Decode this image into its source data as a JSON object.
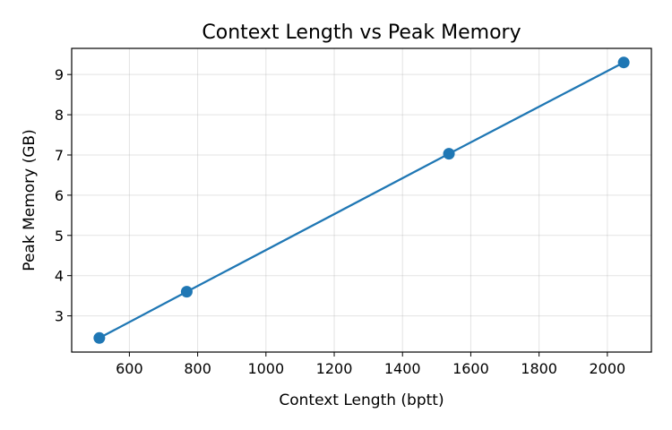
{
  "chart_data": {
    "type": "line",
    "title": "Context Length vs Peak Memory",
    "xlabel": "Context Length (bptt)",
    "ylabel": "Peak Memory (GB)",
    "x": [
      512,
      768,
      1536,
      2048
    ],
    "series": [
      {
        "values": [
          2.45,
          3.6,
          7.03,
          9.3
        ]
      }
    ],
    "xlim": [
      431,
      2129
    ],
    "ylim": [
      2.1,
      9.65
    ],
    "xticks": [
      600,
      800,
      1000,
      1200,
      1400,
      1600,
      1800,
      2000
    ],
    "yticks": [
      3,
      4,
      5,
      6,
      7,
      8,
      9
    ],
    "grid": true,
    "color": "#1f77b4"
  }
}
